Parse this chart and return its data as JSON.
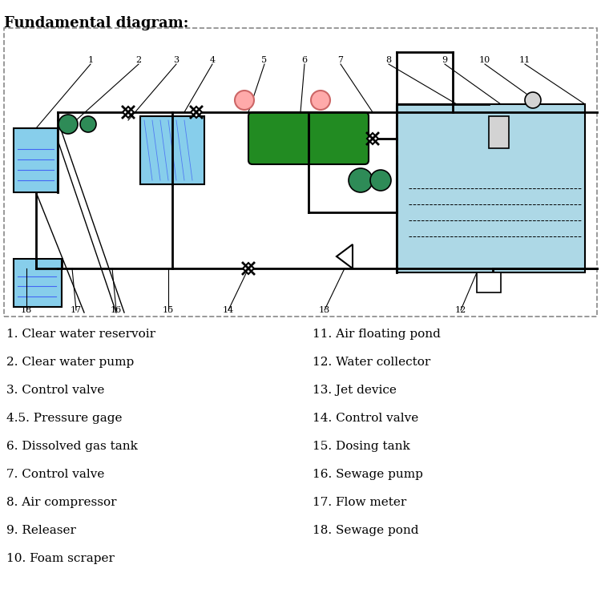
{
  "title": "Fundamental diagram:",
  "bg_color": "#ffffff",
  "border_color": "#888888",
  "diagram_bg": "#f8f8f8",
  "left_items": [
    "1. Clear water reservoir",
    "2. Clear water pump",
    "3. Control valve",
    "4.5. Pressure gage",
    "6. Dissolved gas tank",
    "7. Control valve",
    "8. Air compressor",
    "9. Releaser",
    "10. Foam scraper"
  ],
  "right_items": [
    "11. Air floating pond",
    "12. Water collector",
    "13. Jet device",
    "14. Control valve",
    "15. Dosing tank",
    "16. Sewage pump",
    "17. Flow meter",
    "18. Sewage pond"
  ],
  "label_numbers": [
    "1",
    "2",
    "3",
    "4",
    "5",
    "6",
    "7",
    "8",
    "9",
    "10",
    "11",
    "12",
    "13",
    "14",
    "15",
    "16",
    "17",
    "18"
  ],
  "pond_color": "#add8e6",
  "tank_color": "#87ceeb",
  "gas_tank_color": "#228B22",
  "pipe_color": "#000000",
  "pump_color": "#2e8b57",
  "pink_color": "#ffaaaa"
}
